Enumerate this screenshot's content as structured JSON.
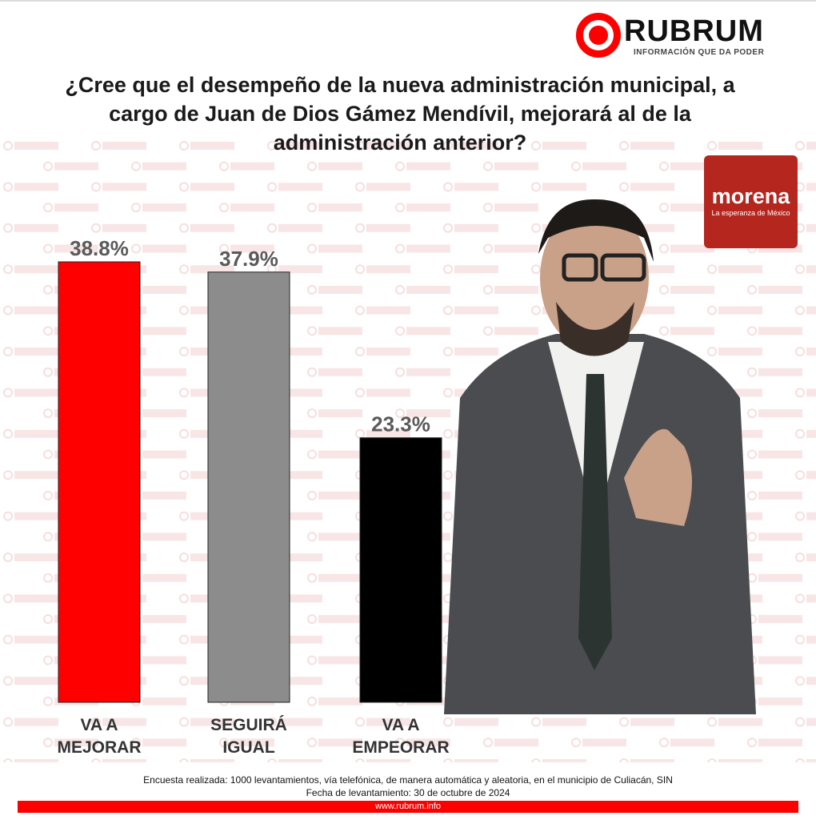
{
  "header": {
    "brand": "RUBRUM",
    "tagline": "INFORMACIÓN QUE DA PODER"
  },
  "watermark": "RUBRUM",
  "party_logo": {
    "name": "morena",
    "tagline": "La esperanza de México",
    "color": "#b5261e"
  },
  "chart_data": {
    "type": "bar",
    "title": "¿Cree que el desempeño de la nueva administración municipal, a cargo de Juan de Dios Gámez Mendívil, mejorará al de la administración anterior?",
    "categories": [
      "VA A MEJORAR",
      "SEGUIRÁ IGUAL",
      "VA A EMPEORAR"
    ],
    "category_lines": [
      [
        "VA A",
        "MEJORAR"
      ],
      [
        "SEGUIRÁ",
        "IGUAL"
      ],
      [
        "VA A",
        "EMPEORAR"
      ]
    ],
    "values": [
      38.8,
      37.9,
      23.3
    ],
    "data_labels": [
      "38.8%",
      "37.9%",
      "23.3%"
    ],
    "colors": [
      "#ff0000",
      "#8c8c8c",
      "#000000"
    ],
    "ylim": [
      0,
      38.8
    ],
    "grid": false
  },
  "footer": {
    "note": "Encuesta realizada: 1000 levantamientos, vía telefónica, de manera automática y aleatoria, en el municipio de Culiacán, SIN",
    "date": "Fecha de levantamiento: 30 de octubre de 2024",
    "url": "www.rubrum.info"
  }
}
